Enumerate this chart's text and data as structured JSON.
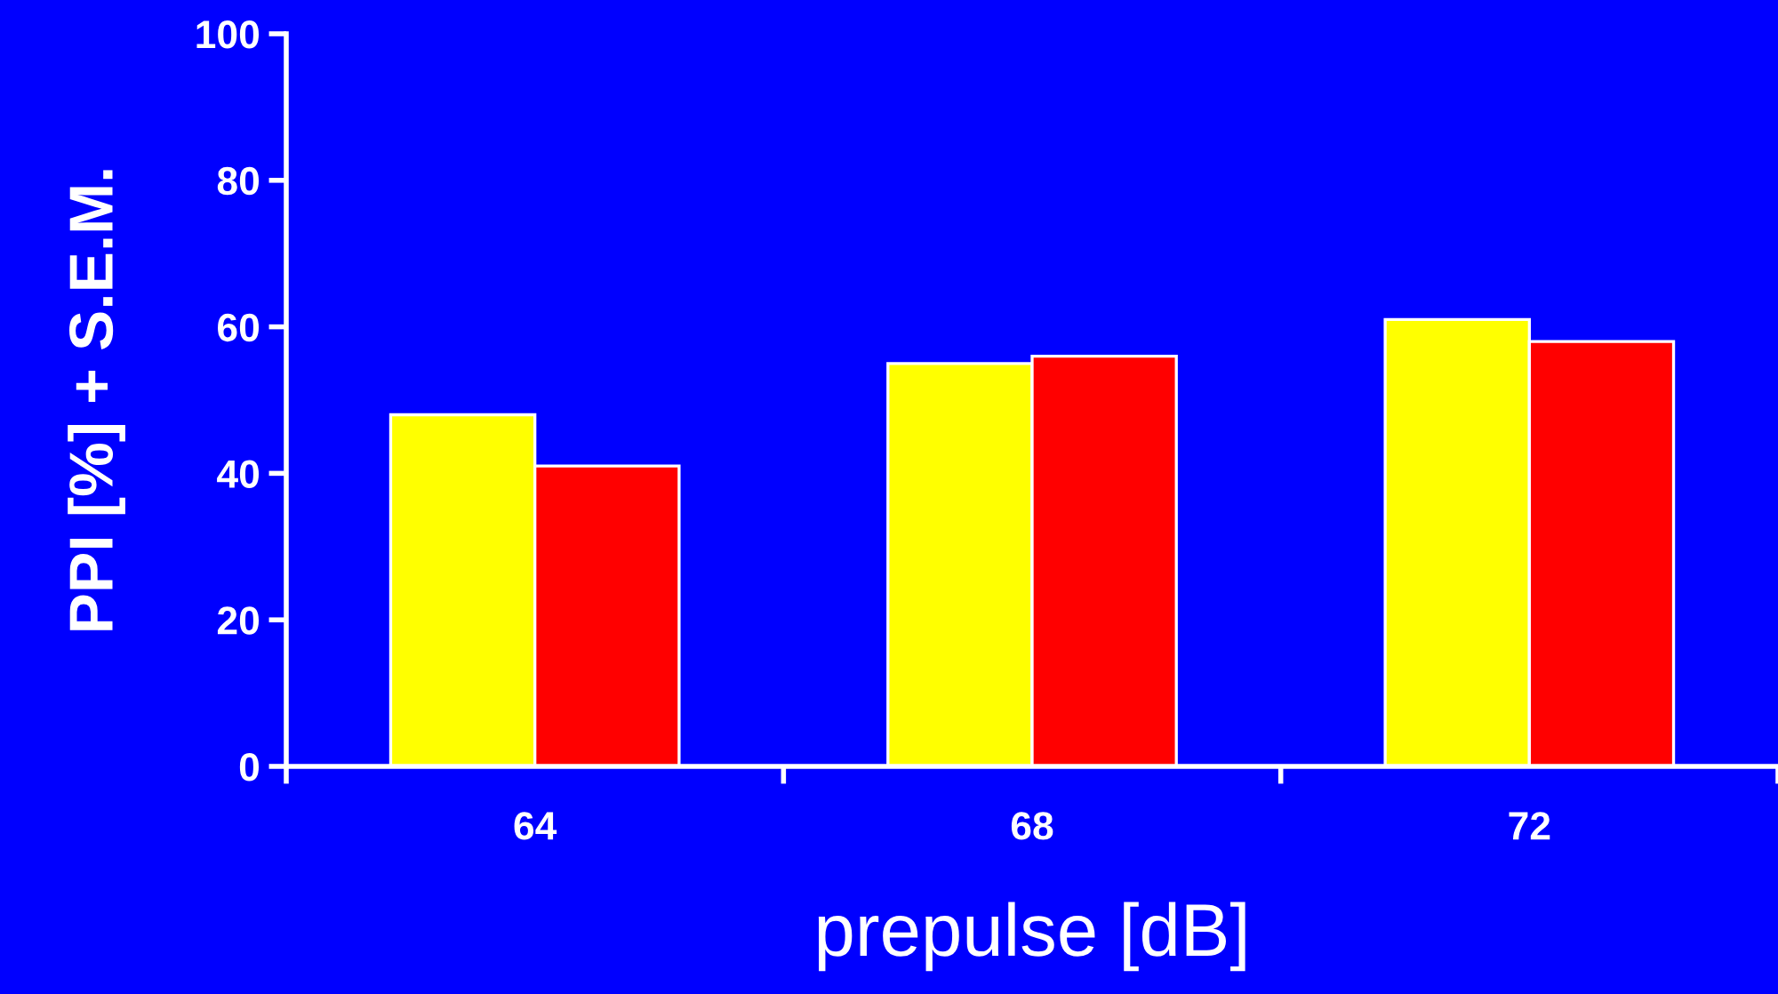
{
  "chart_data": {
    "type": "bar",
    "xlabel": "prepulse [dB]",
    "ylabel": "PPI [%] + S.E.M.",
    "categories": [
      "64",
      "68",
      "72"
    ],
    "series": [
      {
        "color": "#ffff00",
        "values": [
          48,
          55,
          61
        ]
      },
      {
        "color": "#ff0000",
        "values": [
          41,
          56,
          58
        ]
      }
    ],
    "ylim": [
      0,
      100
    ],
    "yticks": [
      0,
      20,
      40,
      60,
      80,
      100
    ],
    "grid": false,
    "legend": false
  }
}
